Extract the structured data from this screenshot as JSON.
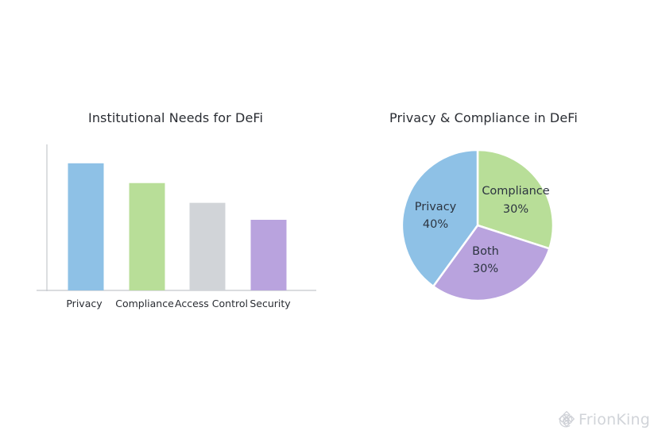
{
  "chart_data": [
    {
      "type": "bar",
      "title": "Institutional Needs for DeFi",
      "categories": [
        "Privacy",
        "Compliance",
        "Access Control",
        "Security"
      ],
      "values": [
        90,
        76,
        62,
        50
      ],
      "ylim": [
        0,
        100
      ],
      "grid": false,
      "legend": "none",
      "colors": [
        "#8ec1e6",
        "#b8de98",
        "#d1d4d8",
        "#b9a3de"
      ]
    },
    {
      "type": "pie",
      "title": "Privacy & Compliance in DeFi",
      "slices": [
        {
          "label": "Compliance",
          "value": 30,
          "value_label": "30%",
          "color": "#b8de98"
        },
        {
          "label": "Both",
          "value": 30,
          "value_label": "30%",
          "color": "#b9a3de"
        },
        {
          "label": "Privacy",
          "value": 40,
          "value_label": "40%",
          "color": "#8ec1e6"
        }
      ],
      "legend": "none"
    }
  ],
  "watermark": {
    "text": "@ FrionKing",
    "icon": "binance-logo-icon"
  },
  "colors": {
    "axis": "#c4c7cc",
    "text": "#2a2d33",
    "pie_label": "#2c3440",
    "slice_border": "#ffffff"
  }
}
